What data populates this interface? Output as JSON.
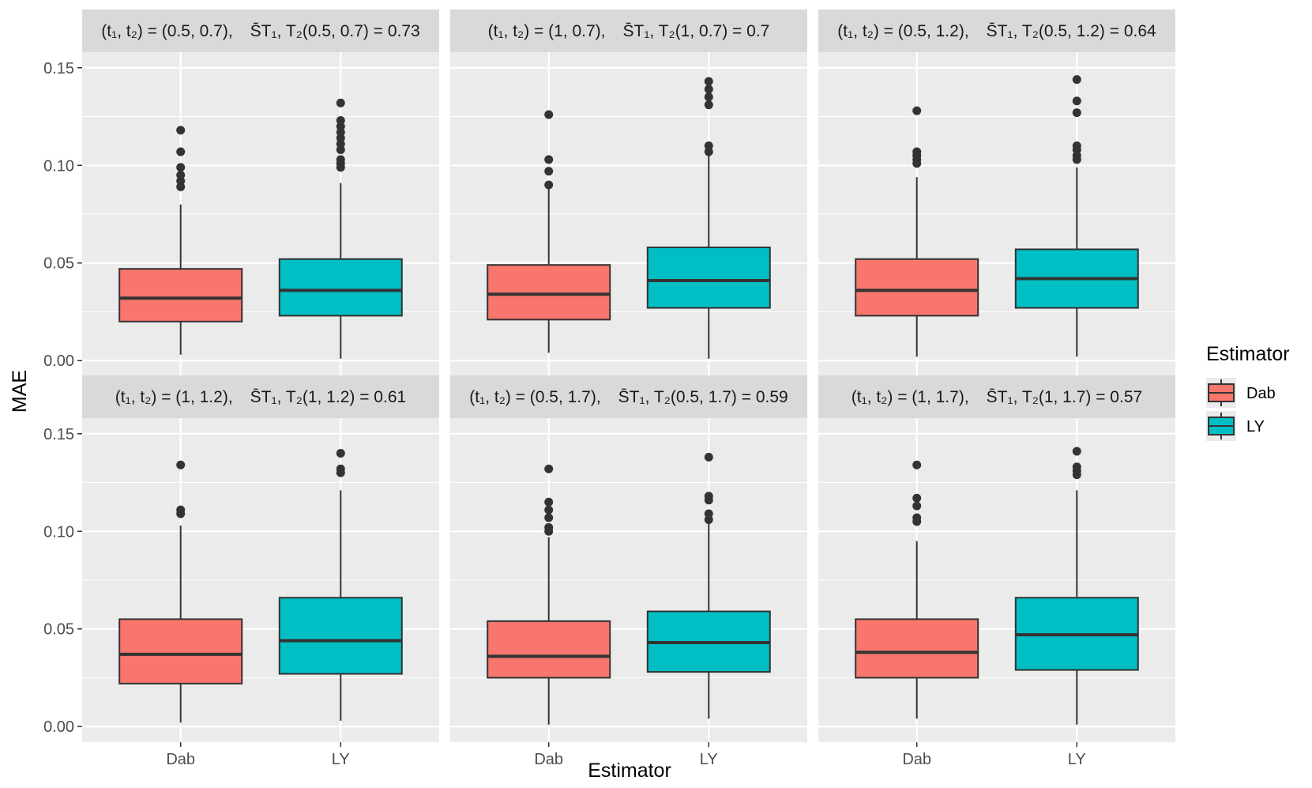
{
  "chart_data": {
    "type": "boxplot",
    "xlabel": "Estimator",
    "ylabel": "MAE",
    "ylim": [
      -0.008,
      0.158
    ],
    "yticks": [
      0.0,
      0.05,
      0.1,
      0.15
    ],
    "ytick_labels": [
      "0.00",
      "0.05",
      "0.10",
      "0.15"
    ],
    "categories": [
      "Dab",
      "LY"
    ],
    "legend": {
      "title": "Estimator",
      "position": "right",
      "entries": [
        {
          "label": "Dab",
          "color": "#F8766D"
        },
        {
          "label": "LY",
          "color": "#00BFC4"
        }
      ]
    },
    "grid": true,
    "layout": "facet 2 rows x 3 columns",
    "panels": [
      {
        "strip": {
          "pair_label": "(t₁, t₂) = (0.5, 0.7),",
          "survival_label": "S̄T₁, T₂(0.5, 0.7) = 0.73",
          "t": "(0.5, 0.7)",
          "S": "0.73"
        },
        "boxes": [
          {
            "group": "Dab",
            "min": 0.003,
            "q1": 0.02,
            "median": 0.032,
            "q3": 0.047,
            "max": 0.08,
            "outliers": [
              0.089,
              0.092,
              0.095,
              0.099,
              0.107,
              0.118
            ]
          },
          {
            "group": "LY",
            "min": 0.001,
            "q1": 0.023,
            "median": 0.036,
            "q3": 0.052,
            "max": 0.091,
            "outliers": [
              0.099,
              0.101,
              0.103,
              0.108,
              0.111,
              0.114,
              0.117,
              0.12,
              0.123,
              0.132
            ]
          }
        ]
      },
      {
        "strip": {
          "pair_label": "(t₁, t₂) = (1, 0.7),",
          "survival_label": "S̄T₁, T₂(1, 0.7) = 0.7",
          "t": "(1, 0.7)",
          "S": "0.7"
        },
        "boxes": [
          {
            "group": "Dab",
            "min": 0.004,
            "q1": 0.021,
            "median": 0.034,
            "q3": 0.049,
            "max": 0.089,
            "outliers": [
              0.09,
              0.097,
              0.103,
              0.126
            ]
          },
          {
            "group": "LY",
            "min": 0.001,
            "q1": 0.027,
            "median": 0.041,
            "q3": 0.058,
            "max": 0.105,
            "outliers": [
              0.107,
              0.11,
              0.131,
              0.135,
              0.139,
              0.143
            ]
          }
        ]
      },
      {
        "strip": {
          "pair_label": "(t₁, t₂) = (0.5, 1.2),",
          "survival_label": "S̄T₁, T₂(0.5, 1.2) = 0.64",
          "t": "(0.5, 1.2)",
          "S": "0.64"
        },
        "boxes": [
          {
            "group": "Dab",
            "min": 0.002,
            "q1": 0.023,
            "median": 0.036,
            "q3": 0.052,
            "max": 0.094,
            "outliers": [
              0.101,
              0.103,
              0.105,
              0.107,
              0.128
            ]
          },
          {
            "group": "LY",
            "min": 0.002,
            "q1": 0.027,
            "median": 0.042,
            "q3": 0.057,
            "max": 0.099,
            "outliers": [
              0.103,
              0.105,
              0.108,
              0.11,
              0.127,
              0.133,
              0.144
            ]
          }
        ]
      },
      {
        "strip": {
          "pair_label": "(t₁, t₂) = (1, 1.2),",
          "survival_label": "S̄T₁, T₂(1, 1.2) = 0.61",
          "t": "(1, 1.2)",
          "S": "0.61"
        },
        "boxes": [
          {
            "group": "Dab",
            "min": 0.002,
            "q1": 0.022,
            "median": 0.037,
            "q3": 0.055,
            "max": 0.103,
            "outliers": [
              0.109,
              0.111,
              0.134
            ]
          },
          {
            "group": "LY",
            "min": 0.003,
            "q1": 0.027,
            "median": 0.044,
            "q3": 0.066,
            "max": 0.121,
            "outliers": [
              0.13,
              0.132,
              0.14
            ]
          }
        ]
      },
      {
        "strip": {
          "pair_label": "(t₁, t₂) = (0.5, 1.7),",
          "survival_label": "S̄T₁, T₂(0.5, 1.7) = 0.59",
          "t": "(0.5, 1.7)",
          "S": "0.59"
        },
        "boxes": [
          {
            "group": "Dab",
            "min": 0.001,
            "q1": 0.025,
            "median": 0.036,
            "q3": 0.054,
            "max": 0.097,
            "outliers": [
              0.1,
              0.102,
              0.107,
              0.111,
              0.115,
              0.132
            ]
          },
          {
            "group": "LY",
            "min": 0.004,
            "q1": 0.028,
            "median": 0.043,
            "q3": 0.059,
            "max": 0.104,
            "outliers": [
              0.106,
              0.109,
              0.116,
              0.118,
              0.138
            ]
          }
        ]
      },
      {
        "strip": {
          "pair_label": "(t₁, t₂) = (1, 1.7),",
          "survival_label": "S̄T₁, T₂(1, 1.7) = 0.57",
          "t": "(1, 1.7)",
          "S": "0.57"
        },
        "boxes": [
          {
            "group": "Dab",
            "min": 0.004,
            "q1": 0.025,
            "median": 0.038,
            "q3": 0.055,
            "max": 0.095,
            "outliers": [
              0.105,
              0.107,
              0.113,
              0.117,
              0.134
            ]
          },
          {
            "group": "LY",
            "min": 0.001,
            "q1": 0.029,
            "median": 0.047,
            "q3": 0.066,
            "max": 0.121,
            "outliers": [
              0.129,
              0.131,
              0.133,
              0.141
            ]
          }
        ]
      }
    ]
  }
}
